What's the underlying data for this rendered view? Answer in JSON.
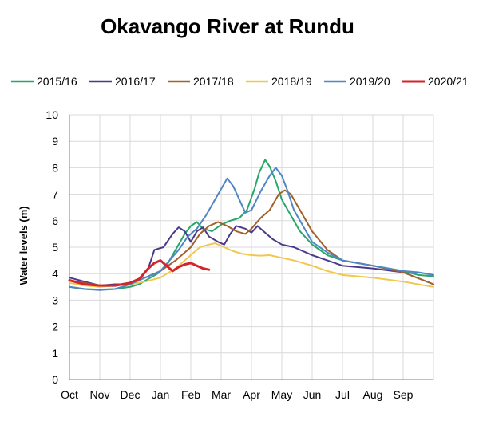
{
  "chart_data": {
    "type": "line",
    "title": "Okavango River at Rundu",
    "xlabel": "",
    "ylabel": "Water levels (m)",
    "ylim": [
      0,
      10
    ],
    "yticks": [
      "0",
      "1",
      "2",
      "3",
      "4",
      "5",
      "6",
      "7",
      "8",
      "9",
      "10"
    ],
    "xticks": [
      "Oct",
      "Nov",
      "Dec",
      "Jan",
      "Feb",
      "Mar",
      "Apr",
      "May",
      "Jun",
      "Jul",
      "Aug",
      "Sep"
    ],
    "x_domain": [
      0,
      12
    ],
    "grid": true,
    "legend_position": "top",
    "series": [
      {
        "name": "2015/16",
        "color": "#2aa66a",
        "points": [
          [
            0,
            3.5
          ],
          [
            0.5,
            3.42
          ],
          [
            1,
            3.4
          ],
          [
            1.5,
            3.42
          ],
          [
            2,
            3.5
          ],
          [
            2.3,
            3.6
          ],
          [
            2.6,
            3.8
          ],
          [
            2.9,
            4.0
          ],
          [
            3.2,
            4.3
          ],
          [
            3.5,
            4.9
          ],
          [
            3.8,
            5.5
          ],
          [
            4.0,
            5.8
          ],
          [
            4.2,
            5.95
          ],
          [
            4.4,
            5.7
          ],
          [
            4.7,
            5.6
          ],
          [
            5.0,
            5.85
          ],
          [
            5.3,
            6.0
          ],
          [
            5.6,
            6.1
          ],
          [
            5.85,
            6.4
          ],
          [
            6.1,
            7.2
          ],
          [
            6.25,
            7.8
          ],
          [
            6.45,
            8.3
          ],
          [
            6.6,
            8.05
          ],
          [
            6.8,
            7.5
          ],
          [
            7.0,
            6.8
          ],
          [
            7.3,
            6.2
          ],
          [
            7.6,
            5.6
          ],
          [
            8.0,
            5.1
          ],
          [
            8.5,
            4.7
          ],
          [
            9.0,
            4.5
          ],
          [
            10.0,
            4.3
          ],
          [
            11.0,
            4.1
          ],
          [
            11.5,
            3.95
          ],
          [
            12.0,
            3.9
          ]
        ]
      },
      {
        "name": "2016/17",
        "color": "#4b3a8c",
        "points": [
          [
            0,
            3.85
          ],
          [
            0.5,
            3.7
          ],
          [
            1,
            3.55
          ],
          [
            1.5,
            3.6
          ],
          [
            2,
            3.6
          ],
          [
            2.3,
            3.75
          ],
          [
            2.6,
            4.2
          ],
          [
            2.8,
            4.9
          ],
          [
            3.1,
            5.0
          ],
          [
            3.4,
            5.5
          ],
          [
            3.6,
            5.75
          ],
          [
            3.8,
            5.6
          ],
          [
            4.0,
            5.2
          ],
          [
            4.2,
            5.6
          ],
          [
            4.4,
            5.75
          ],
          [
            4.6,
            5.4
          ],
          [
            4.9,
            5.2
          ],
          [
            5.1,
            5.1
          ],
          [
            5.3,
            5.5
          ],
          [
            5.5,
            5.8
          ],
          [
            5.8,
            5.7
          ],
          [
            6.0,
            5.55
          ],
          [
            6.2,
            5.8
          ],
          [
            6.4,
            5.6
          ],
          [
            6.7,
            5.3
          ],
          [
            7.0,
            5.1
          ],
          [
            7.4,
            5.0
          ],
          [
            8.0,
            4.7
          ],
          [
            8.5,
            4.5
          ],
          [
            9.0,
            4.3
          ],
          [
            10.0,
            4.2
          ],
          [
            11.0,
            4.05
          ],
          [
            12.0,
            3.6
          ]
        ]
      },
      {
        "name": "2017/18",
        "color": "#a0622a",
        "points": [
          [
            0,
            3.75
          ],
          [
            0.5,
            3.65
          ],
          [
            1,
            3.55
          ],
          [
            1.5,
            3.55
          ],
          [
            2,
            3.65
          ],
          [
            2.5,
            3.85
          ],
          [
            3.0,
            4.1
          ],
          [
            3.5,
            4.5
          ],
          [
            4.0,
            5.0
          ],
          [
            4.3,
            5.5
          ],
          [
            4.6,
            5.8
          ],
          [
            4.9,
            5.95
          ],
          [
            5.2,
            5.8
          ],
          [
            5.5,
            5.6
          ],
          [
            5.8,
            5.5
          ],
          [
            6.0,
            5.7
          ],
          [
            6.3,
            6.1
          ],
          [
            6.6,
            6.4
          ],
          [
            6.9,
            7.0
          ],
          [
            7.1,
            7.15
          ],
          [
            7.3,
            7.0
          ],
          [
            7.6,
            6.4
          ],
          [
            8.0,
            5.6
          ],
          [
            8.5,
            4.9
          ],
          [
            9.0,
            4.5
          ],
          [
            10.0,
            4.3
          ],
          [
            11.0,
            4.05
          ],
          [
            12.0,
            3.6
          ]
        ]
      },
      {
        "name": "2018/19",
        "color": "#f0c850",
        "points": [
          [
            0,
            3.65
          ],
          [
            0.5,
            3.55
          ],
          [
            1,
            3.5
          ],
          [
            1.5,
            3.55
          ],
          [
            2,
            3.6
          ],
          [
            2.5,
            3.7
          ],
          [
            3.0,
            3.85
          ],
          [
            3.5,
            4.2
          ],
          [
            4.0,
            4.7
          ],
          [
            4.3,
            5.0
          ],
          [
            4.6,
            5.1
          ],
          [
            4.8,
            5.15
          ],
          [
            5.1,
            5.0
          ],
          [
            5.4,
            4.85
          ],
          [
            5.7,
            4.75
          ],
          [
            6.0,
            4.7
          ],
          [
            6.3,
            4.68
          ],
          [
            6.6,
            4.7
          ],
          [
            7.0,
            4.6
          ],
          [
            7.4,
            4.5
          ],
          [
            8.0,
            4.3
          ],
          [
            8.5,
            4.1
          ],
          [
            9.0,
            3.95
          ],
          [
            10.0,
            3.85
          ],
          [
            11.0,
            3.7
          ],
          [
            12.0,
            3.5
          ]
        ]
      },
      {
        "name": "2019/20",
        "color": "#4f86c6",
        "points": [
          [
            0,
            3.5
          ],
          [
            0.5,
            3.42
          ],
          [
            1,
            3.38
          ],
          [
            1.5,
            3.42
          ],
          [
            2,
            3.6
          ],
          [
            2.5,
            3.85
          ],
          [
            3.0,
            4.1
          ],
          [
            3.3,
            4.5
          ],
          [
            3.6,
            4.9
          ],
          [
            3.9,
            5.4
          ],
          [
            4.2,
            5.7
          ],
          [
            4.5,
            6.2
          ],
          [
            4.8,
            6.8
          ],
          [
            5.0,
            7.2
          ],
          [
            5.2,
            7.6
          ],
          [
            5.4,
            7.3
          ],
          [
            5.6,
            6.8
          ],
          [
            5.8,
            6.3
          ],
          [
            6.0,
            6.4
          ],
          [
            6.3,
            7.1
          ],
          [
            6.6,
            7.7
          ],
          [
            6.8,
            8.0
          ],
          [
            7.0,
            7.7
          ],
          [
            7.2,
            7.1
          ],
          [
            7.4,
            6.4
          ],
          [
            7.7,
            5.8
          ],
          [
            8.0,
            5.2
          ],
          [
            8.5,
            4.8
          ],
          [
            9.0,
            4.5
          ],
          [
            10.0,
            4.3
          ],
          [
            11.0,
            4.1
          ],
          [
            11.5,
            4.05
          ],
          [
            12.0,
            3.95
          ]
        ]
      },
      {
        "name": "2020/21",
        "color": "#d1262b",
        "points": [
          [
            0,
            3.75
          ],
          [
            0.5,
            3.6
          ],
          [
            1,
            3.55
          ],
          [
            1.5,
            3.55
          ],
          [
            2,
            3.65
          ],
          [
            2.3,
            3.8
          ],
          [
            2.6,
            4.2
          ],
          [
            2.8,
            4.4
          ],
          [
            3.0,
            4.5
          ],
          [
            3.2,
            4.3
          ],
          [
            3.4,
            4.1
          ],
          [
            3.6,
            4.25
          ],
          [
            3.8,
            4.35
          ],
          [
            4.0,
            4.4
          ],
          [
            4.2,
            4.3
          ],
          [
            4.4,
            4.2
          ],
          [
            4.6,
            4.15
          ]
        ]
      }
    ]
  }
}
